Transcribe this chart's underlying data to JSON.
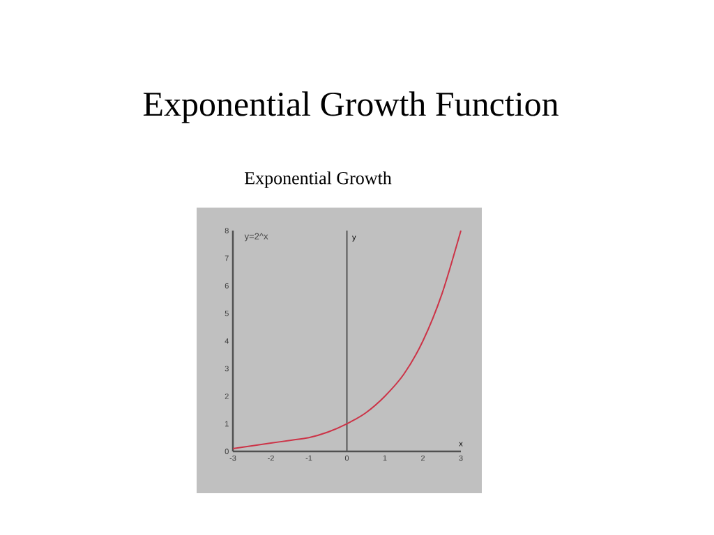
{
  "chart_data": {
    "type": "line",
    "title": "Exponential Growth Function",
    "subtitle": "Exponential Growth",
    "xlabel": "x",
    "ylabel": "y",
    "annotations": [
      "y=2^x"
    ],
    "x": [
      -3,
      -2.5,
      -2,
      -1.5,
      -1,
      -0.5,
      0,
      0.5,
      1,
      1.5,
      2,
      2.5,
      3
    ],
    "series": [
      {
        "color": "#cc3347",
        "values": [
          0.1,
          0.2,
          0.3,
          0.4,
          0.5,
          0.7,
          1,
          1.4,
          2,
          2.8,
          4,
          5.7,
          8
        ]
      }
    ],
    "xlim": [
      -3,
      3
    ],
    "ylim": [
      0,
      8
    ],
    "xticks": [
      -3,
      -2,
      -1,
      0,
      1,
      2,
      3
    ],
    "yticks": [
      0,
      1,
      2,
      3,
      4,
      5,
      6,
      7,
      8
    ],
    "ref_lines": [
      {
        "axis": "x",
        "value": 0,
        "color": "#555555"
      }
    ],
    "marker": "none",
    "line_style": "solid"
  }
}
